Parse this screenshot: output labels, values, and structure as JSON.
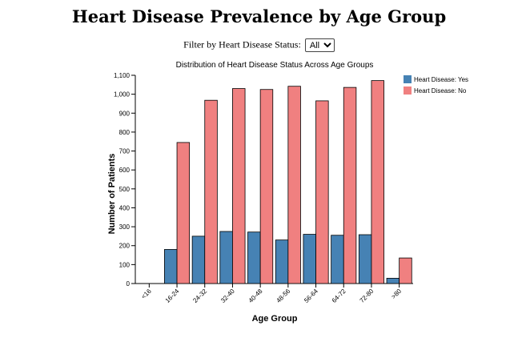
{
  "page": {
    "title": "Heart Disease Prevalence by Age Group",
    "filter_label": "Filter by Heart Disease Status:",
    "filter_selected": "All",
    "filter_options": [
      "All"
    ]
  },
  "chart_data": {
    "type": "bar",
    "title": "Distribution of Heart Disease Status Across Age Groups",
    "xlabel": "Age Group",
    "ylabel": "Number of Patients",
    "categories": [
      "<16",
      "16-24",
      "24-32",
      "32-40",
      "40-48",
      "48-56",
      "56-64",
      "64-72",
      "72-80",
      ">80"
    ],
    "series": [
      {
        "name": "Heart Disease: Yes",
        "color": "#4682b4",
        "values": [
          0,
          180,
          250,
          275,
          272,
          230,
          260,
          255,
          258,
          28
        ]
      },
      {
        "name": "Heart Disease: No",
        "color": "#f08080",
        "values": [
          0,
          745,
          968,
          1030,
          1025,
          1042,
          965,
          1036,
          1072,
          135
        ]
      }
    ],
    "ylim": [
      0,
      1100
    ],
    "yticks": [
      0,
      100,
      200,
      300,
      400,
      500,
      600,
      700,
      800,
      900,
      1000,
      1100
    ],
    "ytick_labels": [
      "0",
      "100",
      "200",
      "300",
      "400",
      "500",
      "600",
      "700",
      "800",
      "900",
      "1,000",
      "1,100"
    ],
    "grid": false,
    "legend_position": "top-right"
  }
}
